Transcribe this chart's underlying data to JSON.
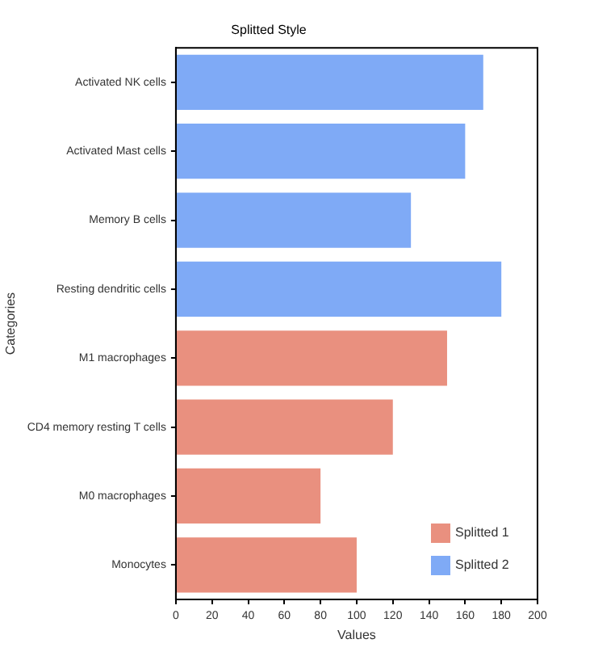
{
  "chart_data": {
    "type": "bar",
    "orientation": "horizontal",
    "title": "Splitted Style",
    "xlabel": "Values",
    "ylabel": "Categories",
    "categories": [
      "Activated NK cells",
      "Activated Mast cells",
      "Memory B cells",
      "Resting dendritic cells",
      "M1 macrophages",
      "CD4 memory resting T cells",
      "M0 macrophages",
      "Monocytes"
    ],
    "series": [
      {
        "name": "Splitted 1",
        "color": "#e9907f",
        "values": [
          null,
          null,
          null,
          null,
          150,
          120,
          80,
          100
        ]
      },
      {
        "name": "Splitted 2",
        "color": "#7faaf6",
        "values": [
          170,
          160,
          130,
          180,
          null,
          null,
          null,
          null
        ]
      }
    ],
    "xlim": [
      0,
      200
    ],
    "xticks": [
      0,
      20,
      40,
      60,
      80,
      100,
      120,
      140,
      160,
      180,
      200
    ],
    "grid": false,
    "legend": "bottom right"
  }
}
